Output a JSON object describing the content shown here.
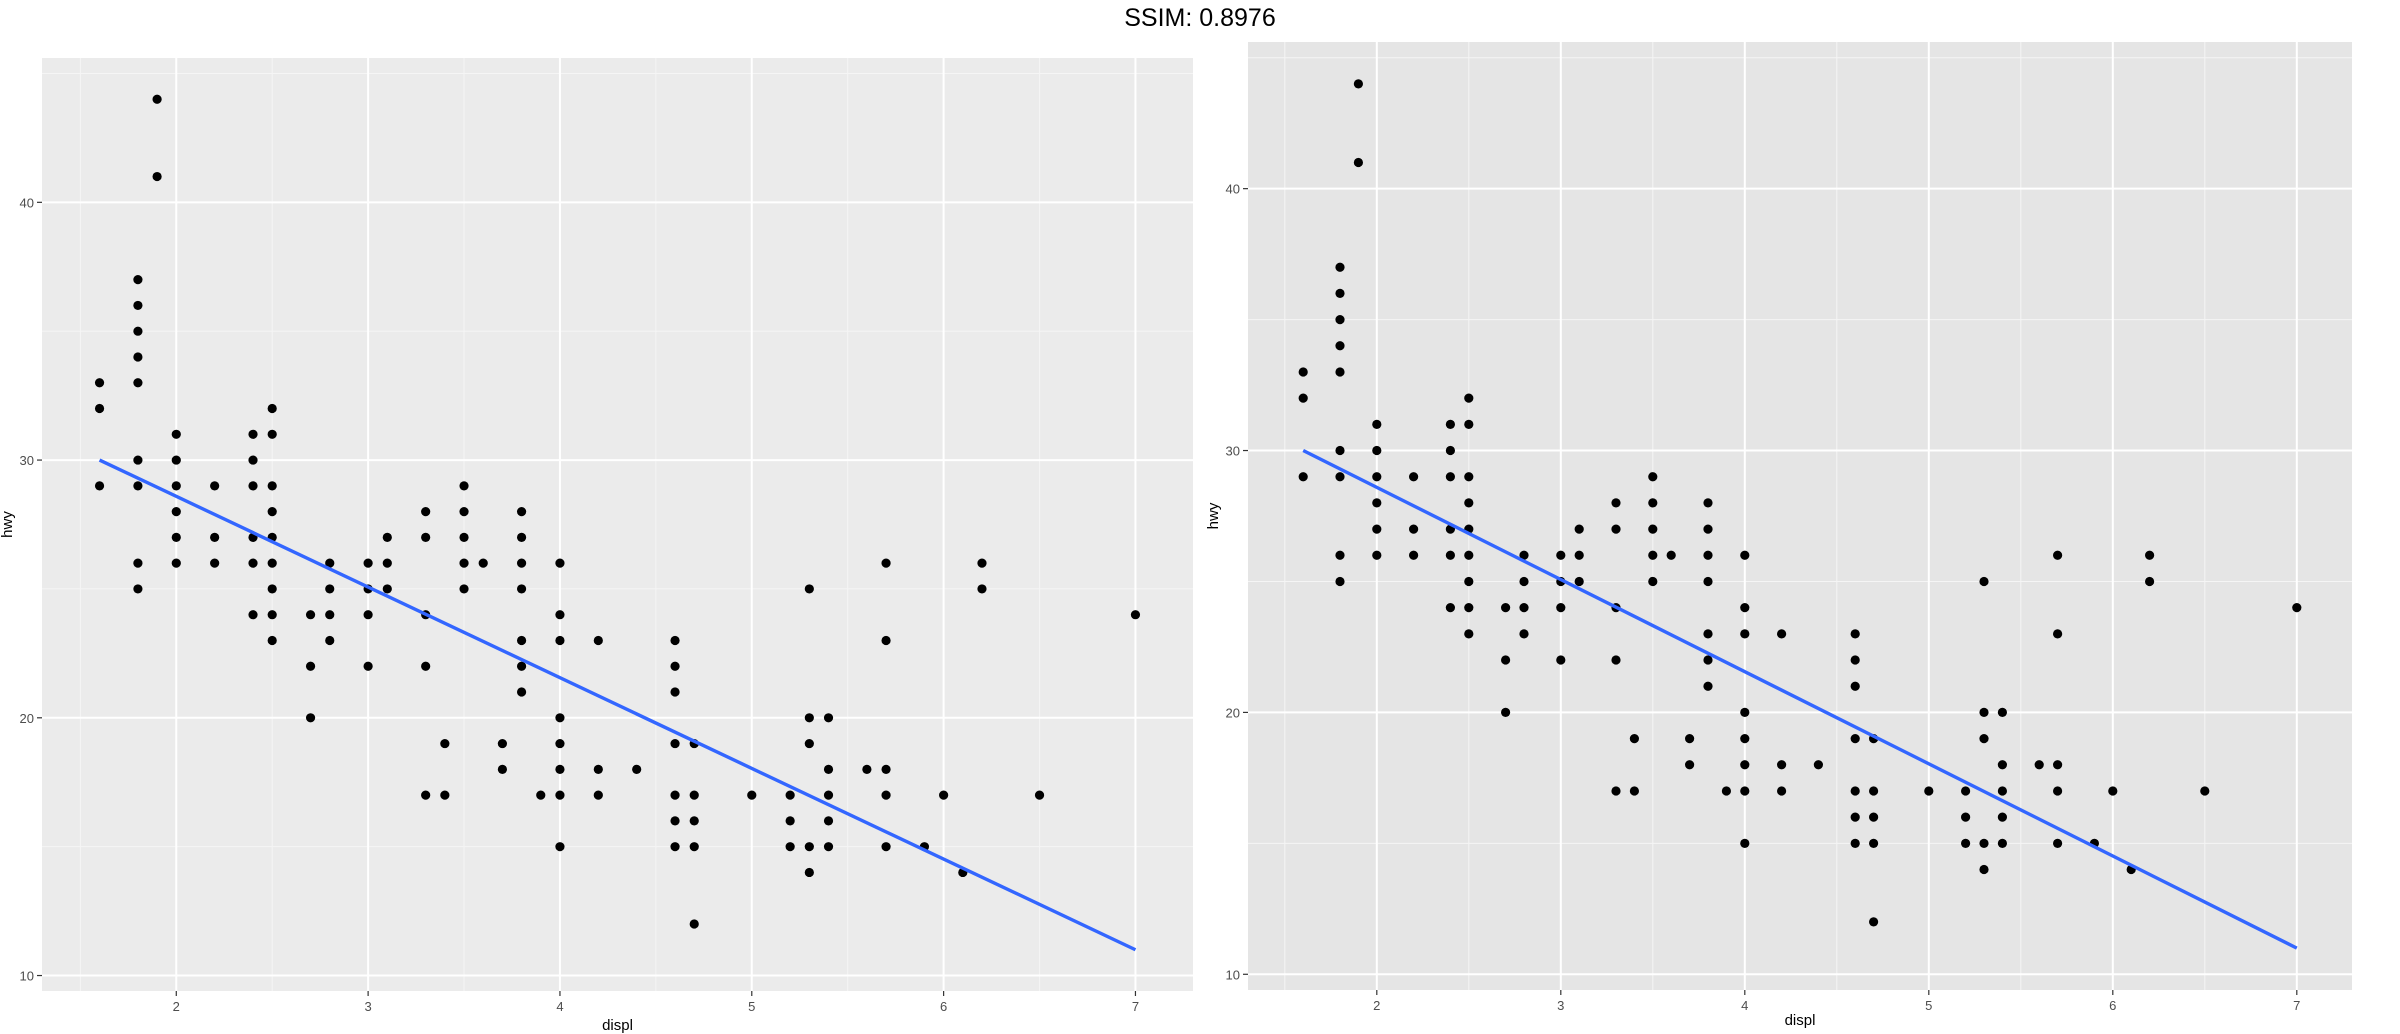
{
  "figure": {
    "title": "SSIM: 0.8976"
  },
  "chart_data": [
    {
      "type": "scatter",
      "panel": "left",
      "xlabel": "displ",
      "ylabel": "hwy",
      "xlim": [
        1.3,
        7.3
      ],
      "ylim": [
        9.4,
        45.6
      ],
      "xticks": [
        2,
        3,
        4,
        5,
        6,
        7
      ],
      "yticks": [
        10,
        20,
        30,
        40
      ],
      "grid": true,
      "background_color": "#ebebeb",
      "point_color": "#000000",
      "line_color": "#3366ff",
      "fit_line": {
        "x": [
          1.6,
          7.0
        ],
        "y": [
          30.0,
          11.0
        ]
      },
      "points": [
        [
          1.6,
          33
        ],
        [
          1.6,
          32
        ],
        [
          1.6,
          29
        ],
        [
          1.8,
          37
        ],
        [
          1.8,
          36
        ],
        [
          1.8,
          35
        ],
        [
          1.8,
          34
        ],
        [
          1.8,
          33
        ],
        [
          1.8,
          30
        ],
        [
          1.8,
          29
        ],
        [
          1.8,
          26
        ],
        [
          1.8,
          25
        ],
        [
          1.9,
          44
        ],
        [
          1.9,
          41
        ],
        [
          2.0,
          31
        ],
        [
          2.0,
          30
        ],
        [
          2.0,
          29
        ],
        [
          2.0,
          28
        ],
        [
          2.0,
          27
        ],
        [
          2.0,
          26
        ],
        [
          2.2,
          29
        ],
        [
          2.2,
          27
        ],
        [
          2.2,
          26
        ],
        [
          2.4,
          31
        ],
        [
          2.4,
          30
        ],
        [
          2.4,
          29
        ],
        [
          2.4,
          27
        ],
        [
          2.4,
          26
        ],
        [
          2.4,
          24
        ],
        [
          2.5,
          32
        ],
        [
          2.5,
          31
        ],
        [
          2.5,
          29
        ],
        [
          2.5,
          28
        ],
        [
          2.5,
          27
        ],
        [
          2.5,
          26
        ],
        [
          2.5,
          25
        ],
        [
          2.5,
          24
        ],
        [
          2.5,
          23
        ],
        [
          2.7,
          24
        ],
        [
          2.7,
          22
        ],
        [
          2.7,
          20
        ],
        [
          2.8,
          26
        ],
        [
          2.8,
          25
        ],
        [
          2.8,
          24
        ],
        [
          2.8,
          23
        ],
        [
          3.0,
          26
        ],
        [
          3.0,
          25
        ],
        [
          3.0,
          24
        ],
        [
          3.0,
          22
        ],
        [
          3.1,
          27
        ],
        [
          3.1,
          26
        ],
        [
          3.1,
          25
        ],
        [
          3.3,
          28
        ],
        [
          3.3,
          27
        ],
        [
          3.3,
          24
        ],
        [
          3.3,
          22
        ],
        [
          3.3,
          17
        ],
        [
          3.4,
          19
        ],
        [
          3.4,
          17
        ],
        [
          3.5,
          29
        ],
        [
          3.5,
          28
        ],
        [
          3.5,
          27
        ],
        [
          3.5,
          26
        ],
        [
          3.5,
          25
        ],
        [
          3.6,
          26
        ],
        [
          3.7,
          19
        ],
        [
          3.7,
          18
        ],
        [
          3.8,
          28
        ],
        [
          3.8,
          27
        ],
        [
          3.8,
          26
        ],
        [
          3.8,
          25
        ],
        [
          3.8,
          23
        ],
        [
          3.8,
          22
        ],
        [
          3.8,
          21
        ],
        [
          3.9,
          17
        ],
        [
          4.0,
          26
        ],
        [
          4.0,
          24
        ],
        [
          4.0,
          23
        ],
        [
          4.0,
          20
        ],
        [
          4.0,
          19
        ],
        [
          4.0,
          18
        ],
        [
          4.0,
          17
        ],
        [
          4.0,
          15
        ],
        [
          4.2,
          23
        ],
        [
          4.2,
          18
        ],
        [
          4.2,
          17
        ],
        [
          4.4,
          18
        ],
        [
          4.6,
          23
        ],
        [
          4.6,
          22
        ],
        [
          4.6,
          21
        ],
        [
          4.6,
          19
        ],
        [
          4.6,
          17
        ],
        [
          4.6,
          16
        ],
        [
          4.6,
          15
        ],
        [
          4.7,
          19
        ],
        [
          4.7,
          17
        ],
        [
          4.7,
          16
        ],
        [
          4.7,
          15
        ],
        [
          4.7,
          12
        ],
        [
          5.0,
          17
        ],
        [
          5.2,
          17
        ],
        [
          5.2,
          16
        ],
        [
          5.2,
          15
        ],
        [
          5.3,
          25
        ],
        [
          5.3,
          20
        ],
        [
          5.3,
          19
        ],
        [
          5.3,
          15
        ],
        [
          5.3,
          14
        ],
        [
          5.4,
          20
        ],
        [
          5.4,
          18
        ],
        [
          5.4,
          17
        ],
        [
          5.4,
          16
        ],
        [
          5.4,
          15
        ],
        [
          5.6,
          18
        ],
        [
          5.7,
          26
        ],
        [
          5.7,
          23
        ],
        [
          5.7,
          18
        ],
        [
          5.7,
          17
        ],
        [
          5.7,
          15
        ],
        [
          5.9,
          15
        ],
        [
          6.0,
          17
        ],
        [
          6.1,
          14
        ],
        [
          6.2,
          26
        ],
        [
          6.2,
          25
        ],
        [
          6.5,
          17
        ],
        [
          7.0,
          24
        ]
      ]
    },
    {
      "type": "scatter",
      "panel": "right",
      "xlabel": "displ",
      "ylabel": "hwy",
      "xlim": [
        1.3,
        7.3
      ],
      "ylim": [
        9.4,
        45.6
      ],
      "xticks": [
        2,
        3,
        4,
        5,
        6,
        7
      ],
      "yticks": [
        10,
        20,
        30,
        40
      ],
      "grid": true,
      "background_color": "#e5e5e5",
      "point_color": "#000000",
      "line_color": "#3366ff",
      "fit_line": {
        "x": [
          1.6,
          7.0
        ],
        "y": [
          30.0,
          11.0
        ]
      },
      "points": [
        [
          1.6,
          33
        ],
        [
          1.6,
          32
        ],
        [
          1.6,
          29
        ],
        [
          1.8,
          37
        ],
        [
          1.8,
          36
        ],
        [
          1.8,
          35
        ],
        [
          1.8,
          34
        ],
        [
          1.8,
          33
        ],
        [
          1.8,
          30
        ],
        [
          1.8,
          29
        ],
        [
          1.8,
          26
        ],
        [
          1.8,
          25
        ],
        [
          1.9,
          44
        ],
        [
          1.9,
          41
        ],
        [
          2.0,
          31
        ],
        [
          2.0,
          30
        ],
        [
          2.0,
          29
        ],
        [
          2.0,
          28
        ],
        [
          2.0,
          27
        ],
        [
          2.0,
          26
        ],
        [
          2.2,
          29
        ],
        [
          2.2,
          27
        ],
        [
          2.2,
          26
        ],
        [
          2.4,
          31
        ],
        [
          2.4,
          30
        ],
        [
          2.4,
          29
        ],
        [
          2.4,
          27
        ],
        [
          2.4,
          26
        ],
        [
          2.4,
          24
        ],
        [
          2.5,
          32
        ],
        [
          2.5,
          31
        ],
        [
          2.5,
          29
        ],
        [
          2.5,
          28
        ],
        [
          2.5,
          27
        ],
        [
          2.5,
          26
        ],
        [
          2.5,
          25
        ],
        [
          2.5,
          24
        ],
        [
          2.5,
          23
        ],
        [
          2.7,
          24
        ],
        [
          2.7,
          22
        ],
        [
          2.7,
          20
        ],
        [
          2.8,
          26
        ],
        [
          2.8,
          25
        ],
        [
          2.8,
          24
        ],
        [
          2.8,
          23
        ],
        [
          3.0,
          26
        ],
        [
          3.0,
          25
        ],
        [
          3.0,
          24
        ],
        [
          3.0,
          22
        ],
        [
          3.1,
          27
        ],
        [
          3.1,
          26
        ],
        [
          3.1,
          25
        ],
        [
          3.3,
          28
        ],
        [
          3.3,
          27
        ],
        [
          3.3,
          24
        ],
        [
          3.3,
          22
        ],
        [
          3.3,
          17
        ],
        [
          3.4,
          19
        ],
        [
          3.4,
          17
        ],
        [
          3.5,
          29
        ],
        [
          3.5,
          28
        ],
        [
          3.5,
          27
        ],
        [
          3.5,
          26
        ],
        [
          3.5,
          25
        ],
        [
          3.6,
          26
        ],
        [
          3.7,
          19
        ],
        [
          3.7,
          18
        ],
        [
          3.8,
          28
        ],
        [
          3.8,
          27
        ],
        [
          3.8,
          26
        ],
        [
          3.8,
          25
        ],
        [
          3.8,
          23
        ],
        [
          3.8,
          22
        ],
        [
          3.8,
          21
        ],
        [
          3.9,
          17
        ],
        [
          4.0,
          26
        ],
        [
          4.0,
          24
        ],
        [
          4.0,
          23
        ],
        [
          4.0,
          20
        ],
        [
          4.0,
          19
        ],
        [
          4.0,
          18
        ],
        [
          4.0,
          17
        ],
        [
          4.0,
          15
        ],
        [
          4.2,
          23
        ],
        [
          4.2,
          18
        ],
        [
          4.2,
          17
        ],
        [
          4.4,
          18
        ],
        [
          4.6,
          23
        ],
        [
          4.6,
          22
        ],
        [
          4.6,
          21
        ],
        [
          4.6,
          19
        ],
        [
          4.6,
          17
        ],
        [
          4.6,
          16
        ],
        [
          4.6,
          15
        ],
        [
          4.7,
          19
        ],
        [
          4.7,
          17
        ],
        [
          4.7,
          16
        ],
        [
          4.7,
          15
        ],
        [
          4.7,
          12
        ],
        [
          5.0,
          17
        ],
        [
          5.2,
          17
        ],
        [
          5.2,
          16
        ],
        [
          5.2,
          15
        ],
        [
          5.3,
          25
        ],
        [
          5.3,
          20
        ],
        [
          5.3,
          19
        ],
        [
          5.3,
          15
        ],
        [
          5.3,
          14
        ],
        [
          5.4,
          20
        ],
        [
          5.4,
          18
        ],
        [
          5.4,
          17
        ],
        [
          5.4,
          16
        ],
        [
          5.4,
          15
        ],
        [
          5.6,
          18
        ],
        [
          5.7,
          26
        ],
        [
          5.7,
          23
        ],
        [
          5.7,
          18
        ],
        [
          5.7,
          17
        ],
        [
          5.7,
          15
        ],
        [
          5.9,
          15
        ],
        [
          6.0,
          17
        ],
        [
          6.1,
          14
        ],
        [
          6.2,
          26
        ],
        [
          6.2,
          25
        ],
        [
          6.5,
          17
        ],
        [
          7.0,
          24
        ]
      ]
    }
  ]
}
